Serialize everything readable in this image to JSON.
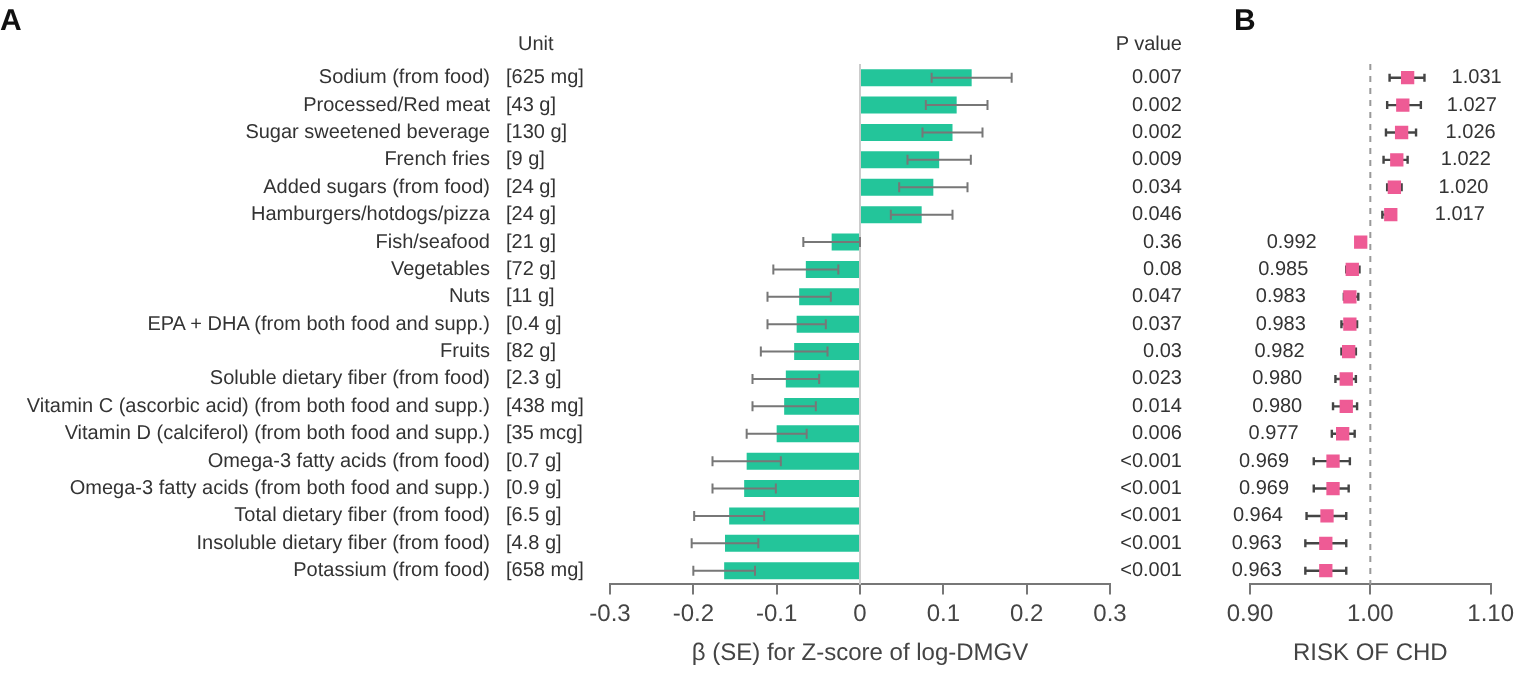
{
  "chart_data": [
    {
      "type": "bar",
      "title": "A",
      "orientation": "horizontal",
      "categories": [
        "Sodium (from food)",
        "Processed/Red meat",
        "Sugar sweetened beverage",
        "French fries",
        "Added sugars (from food)",
        "Hamburgers/hotdogs/pizza",
        "Fish/seafood",
        "Vegetables",
        "Nuts",
        "EPA + DHA (from both food and supp.)",
        "Fruits",
        "Soluble dietary fiber (from food)",
        "Vitamin C (ascorbic acid) (from both food and supp.)",
        "Vitamin D (calciferol) (from both food and supp.)",
        "Omega-3 fatty acids (from food)",
        "Omega-3 fatty acids (from both food and supp.)",
        "Total dietary fiber (from food)",
        "Insoluble dietary fiber (from food)",
        "Potassium (from food)"
      ],
      "values": [
        0.134,
        0.116,
        0.111,
        0.095,
        0.088,
        0.074,
        -0.034,
        -0.065,
        -0.073,
        -0.076,
        -0.079,
        -0.089,
        -0.091,
        -0.1,
        -0.136,
        -0.139,
        -0.157,
        -0.162,
        -0.163
      ],
      "errors": [
        0.048,
        0.037,
        0.036,
        0.038,
        0.041,
        0.037,
        0.034,
        0.039,
        0.038,
        0.035,
        0.04,
        0.04,
        0.038,
        0.036,
        0.041,
        0.038,
        0.042,
        0.04,
        0.037
      ],
      "color": "#23c59a",
      "xlim": [
        -0.3,
        0.3
      ],
      "xticks": [
        -0.3,
        -0.2,
        -0.1,
        0,
        0.1,
        0.2,
        0.3
      ],
      "xlabel": "β (SE) for Z-score of log-DMGV",
      "ref_lines": [
        {
          "axis": "x",
          "value": 0,
          "color": "#cccccc"
        }
      ],
      "annotations": [
        "Unit",
        "[625 mg]",
        "[43 g]",
        "[130 g]",
        "[9 g]",
        "[24 g]",
        "[24 g]",
        "[21 g]",
        "[72 g]",
        "[11 g]",
        "[0.4 g]",
        "[82 g]",
        "[2.3 g]",
        "[438 mg]",
        "[35 mcg]",
        "[0.7 g]",
        "[0.9 g]",
        "[6.5 g]",
        "[4.8 g]",
        "[658 mg]",
        "P value",
        "0.007",
        "0.002",
        "0.002",
        "0.009",
        "0.034",
        "0.046",
        "0.36",
        "0.08",
        "0.047",
        "0.037",
        "0.03",
        "0.023",
        "0.014",
        "0.006",
        "<0.001",
        "<0.001",
        "<0.001",
        "<0.001",
        "<0.001"
      ]
    },
    {
      "type": "scatter",
      "title": "B",
      "orientation": "horizontal",
      "tick_labels": "x",
      "categories": [
        null,
        null,
        null,
        null,
        null,
        null,
        null,
        null,
        null,
        null,
        null,
        null,
        null,
        null,
        null,
        null,
        null,
        null,
        null
      ],
      "values": [
        1.031,
        1.027,
        1.026,
        1.022,
        1.02,
        1.017,
        0.992,
        0.985,
        0.983,
        0.983,
        0.982,
        0.98,
        0.98,
        0.977,
        0.969,
        0.969,
        0.964,
        0.963,
        0.963
      ],
      "value_labels": [
        "1.031",
        "1.027",
        "1.026",
        "1.022",
        "1.020",
        "1.017",
        "0.992",
        "0.985",
        "0.983",
        "0.983",
        "0.982",
        "0.980",
        "0.980",
        "0.977",
        "0.969",
        "0.969",
        "0.964",
        "0.963",
        "0.963"
      ],
      "errors": [
        [
          1.016,
          1.045
        ],
        [
          1.014,
          1.042
        ],
        [
          1.013,
          1.038
        ],
        [
          1.011,
          1.031
        ],
        [
          1.014,
          1.026
        ],
        [
          1.01,
          1.021
        ],
        null,
        [
          0.98,
          0.991
        ],
        [
          0.978,
          0.99
        ],
        [
          0.976,
          0.989
        ],
        [
          0.976,
          0.988
        ],
        [
          0.971,
          0.988
        ],
        [
          0.969,
          0.989
        ],
        [
          0.968,
          0.987
        ],
        [
          0.953,
          0.983
        ],
        [
          0.953,
          0.982
        ],
        [
          0.947,
          0.98
        ],
        [
          0.946,
          0.98
        ],
        [
          0.946,
          0.98
        ]
      ],
      "color": "#ee5b95",
      "marker": "square",
      "xlim": [
        0.9,
        1.1
      ],
      "xticks": [
        {
          "value": 0.9,
          "label": "0.90"
        },
        {
          "value": 1,
          "label": "1.00"
        },
        {
          "value": 1.1,
          "label": "1.10"
        }
      ],
      "xlabel": "RISK OF CHD",
      "ref_lines": [
        {
          "axis": "x",
          "value": 1,
          "color": "#999999",
          "line_style": "dashed"
        }
      ]
    }
  ]
}
